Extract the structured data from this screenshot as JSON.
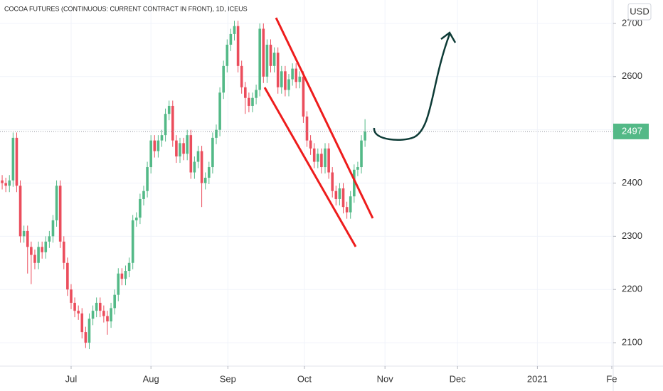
{
  "chart_data": {
    "type": "candlestick",
    "title": "COCOA FUTURES (CONTINUOUS: CURRENT CONTRACT IN FRONT), 1D, ICEUS",
    "currency": "USD",
    "up_color": "#53b987",
    "down_color": "#eb4d5c",
    "grid": true,
    "last_price": 2497,
    "xlim": [
      -0.6,
      168.4
    ],
    "ylim": [
      2056,
      2744
    ],
    "yticks": [
      2100,
      2200,
      2300,
      2400,
      2500,
      2600,
      2700
    ],
    "xticks": [
      {
        "value": 19,
        "label": "Jul"
      },
      {
        "value": 41,
        "label": "Aug"
      },
      {
        "value": 62.2,
        "label": "Sep"
      },
      {
        "value": 83.3,
        "label": "Oct"
      },
      {
        "value": 105.5,
        "label": "Nov"
      },
      {
        "value": 125.5,
        "label": "Dec"
      },
      {
        "value": 147.5,
        "label": "2021"
      },
      {
        "value": 168,
        "label": "Fe"
      }
    ],
    "open": [
      2405,
      2400,
      2395,
      2405,
      2485,
      2395,
      2300,
      2310,
      2280,
      2265,
      2250,
      2280,
      2270,
      2290,
      2300,
      2330,
      2395,
      2290,
      2250,
      2200,
      2175,
      2160,
      2155,
      2120,
      2100,
      2145,
      2160,
      2175,
      2160,
      2150,
      2140,
      2165,
      2190,
      2230,
      2220,
      2235,
      2250,
      2330,
      2335,
      2370,
      2385,
      2430,
      2480,
      2460,
      2480,
      2490,
      2530,
      2545,
      2480,
      2450,
      2475,
      2455,
      2490,
      2420,
      2440,
      2460,
      2400,
      2410,
      2430,
      2485,
      2500,
      2570,
      2620,
      2660,
      2680,
      2695,
      2620,
      2580,
      2560,
      2545,
      2560,
      2575,
      2690,
      2600,
      2660,
      2620,
      2645,
      2580,
      2610,
      2575,
      2595,
      2615,
      2590,
      2600,
      2525,
      2480,
      2465,
      2440,
      2455,
      2430,
      2465,
      2420,
      2385,
      2370,
      2390,
      2355,
      2345,
      2375,
      2425,
      2430,
      2480
    ],
    "high": [
      2415,
      2410,
      2415,
      2495,
      2495,
      2405,
      2320,
      2320,
      2290,
      2275,
      2290,
      2290,
      2300,
      2310,
      2340,
      2405,
      2405,
      2300,
      2260,
      2210,
      2185,
      2170,
      2165,
      2130,
      2155,
      2170,
      2185,
      2185,
      2170,
      2160,
      2175,
      2200,
      2240,
      2240,
      2245,
      2260,
      2340,
      2345,
      2380,
      2395,
      2440,
      2490,
      2490,
      2490,
      2500,
      2540,
      2555,
      2555,
      2490,
      2485,
      2485,
      2500,
      2500,
      2450,
      2470,
      2470,
      2420,
      2440,
      2495,
      2510,
      2580,
      2630,
      2670,
      2690,
      2705,
      2705,
      2630,
      2590,
      2570,
      2570,
      2585,
      2700,
      2700,
      2670,
      2670,
      2655,
      2655,
      2620,
      2620,
      2605,
      2625,
      2625,
      2610,
      2610,
      2535,
      2490,
      2475,
      2465,
      2465,
      2475,
      2475,
      2430,
      2395,
      2400,
      2400,
      2365,
      2385,
      2435,
      2440,
      2490,
      2520
    ],
    "low": [
      2388,
      2383,
      2383,
      2393,
      2383,
      2288,
      2288,
      2230,
      2210,
      2238,
      2238,
      2258,
      2258,
      2278,
      2288,
      2318,
      2278,
      2238,
      2188,
      2163,
      2148,
      2143,
      2108,
      2090,
      2088,
      2133,
      2148,
      2148,
      2138,
      2115,
      2128,
      2153,
      2178,
      2208,
      2208,
      2223,
      2238,
      2318,
      2323,
      2358,
      2373,
      2418,
      2448,
      2448,
      2468,
      2478,
      2518,
      2468,
      2438,
      2438,
      2443,
      2443,
      2408,
      2408,
      2428,
      2355,
      2388,
      2398,
      2418,
      2473,
      2488,
      2558,
      2608,
      2648,
      2668,
      2608,
      2568,
      2530,
      2533,
      2533,
      2548,
      2563,
      2588,
      2588,
      2608,
      2608,
      2568,
      2568,
      2563,
      2563,
      2583,
      2578,
      2578,
      2513,
      2468,
      2453,
      2428,
      2428,
      2418,
      2418,
      2408,
      2373,
      2358,
      2358,
      2343,
      2333,
      2333,
      2363,
      2413,
      2418,
      2468
    ],
    "close": [
      2400,
      2395,
      2405,
      2485,
      2395,
      2300,
      2310,
      2280,
      2265,
      2250,
      2280,
      2270,
      2290,
      2300,
      2330,
      2395,
      2290,
      2250,
      2200,
      2175,
      2160,
      2155,
      2120,
      2100,
      2145,
      2160,
      2175,
      2160,
      2150,
      2140,
      2165,
      2190,
      2230,
      2220,
      2235,
      2250,
      2330,
      2335,
      2370,
      2385,
      2430,
      2480,
      2460,
      2480,
      2490,
      2530,
      2545,
      2480,
      2450,
      2475,
      2455,
      2490,
      2420,
      2440,
      2460,
      2400,
      2410,
      2430,
      2485,
      2500,
      2570,
      2620,
      2660,
      2680,
      2695,
      2620,
      2580,
      2560,
      2545,
      2560,
      2575,
      2690,
      2600,
      2660,
      2620,
      2645,
      2580,
      2610,
      2575,
      2595,
      2615,
      2590,
      2600,
      2525,
      2480,
      2465,
      2440,
      2455,
      2430,
      2465,
      2420,
      2385,
      2370,
      2390,
      2355,
      2345,
      2375,
      2425,
      2430,
      2480,
      2497
    ]
  }
}
